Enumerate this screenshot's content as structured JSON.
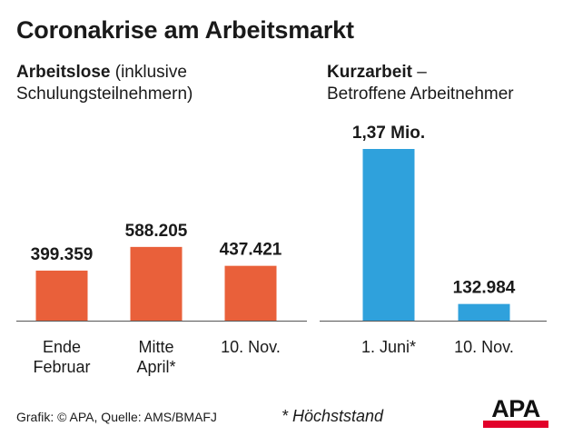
{
  "title": "Coronakrise am Arbeitsmarkt",
  "left_panel": {
    "heading_bold": "Arbeitslose",
    "heading_rest": " (inklusive",
    "heading_line2": "Schulungsteilnehmern)"
  },
  "right_panel": {
    "heading_bold": "Kurzarbeit",
    "heading_rest": " –",
    "heading_line2": "Betroffene Arbeitnehmer"
  },
  "chart_data": [
    {
      "type": "bar",
      "title": "Arbeitslose (inklusive Schulungsteilnehmern)",
      "categories": [
        [
          "Ende",
          "Februar"
        ],
        [
          "Mitte",
          "April*"
        ],
        [
          "10. Nov."
        ]
      ],
      "values": [
        399359,
        588205,
        437421
      ],
      "value_labels": [
        "399.359",
        "588.205",
        "437.421"
      ],
      "color": "#e9603a",
      "ylim": [
        0,
        1370000
      ],
      "grid": false
    },
    {
      "type": "bar",
      "title": "Kurzarbeit – Betroffene Arbeitnehmer",
      "categories": [
        [
          "1. Juni*"
        ],
        [
          "10. Nov."
        ]
      ],
      "values": [
        1370000,
        132984
      ],
      "value_labels": [
        "1,37 Mio.",
        "132.984"
      ],
      "color": "#2fa1dc",
      "ylim": [
        0,
        1370000
      ],
      "grid": false
    }
  ],
  "footer": {
    "source": "Grafik: © APA, Quelle: AMS/BMAFJ",
    "footnote": "* Höchststand",
    "logo_text": "APA",
    "logo_bar_color": "#e2002a"
  }
}
